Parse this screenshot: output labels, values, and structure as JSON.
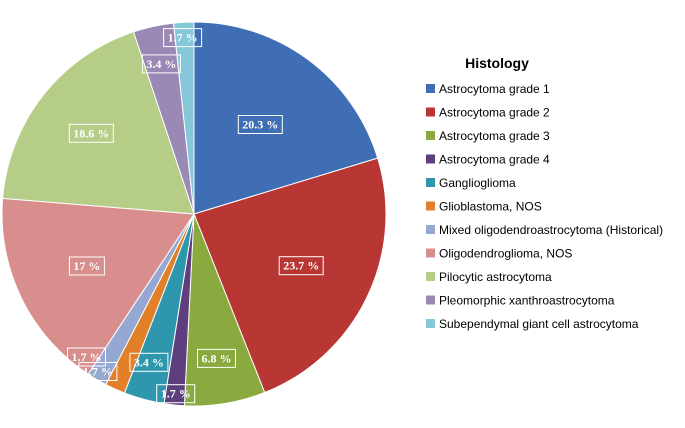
{
  "chart_data": {
    "type": "pie",
    "legend_title": "Histology",
    "legend_position": "right",
    "slices": [
      {
        "name": "Astrocytoma grade 1",
        "value": 20.3,
        "label": "20.3 %",
        "color": "#3f6eb4"
      },
      {
        "name": "Astrocytoma grade 2",
        "value": 23.7,
        "label": "23.7 %",
        "color": "#b83634"
      },
      {
        "name": "Astrocytoma grade 3",
        "value": 6.8,
        "label": "6.8 %",
        "color": "#8aaa3f"
      },
      {
        "name": "Astrocytoma grade 4",
        "value": 1.7,
        "label": "1.7 %",
        "color": "#5d3f7e"
      },
      {
        "name": "Ganglioglioma",
        "value": 3.4,
        "label": "3.4 %",
        "color": "#2e96ad"
      },
      {
        "name": "Glioblastoma, NOS",
        "value": 1.7,
        "label": "1.7 %",
        "color": "#e2802a"
      },
      {
        "name": "Mixed oligodendroastrocytoma (Historical)",
        "value": 1.7,
        "label": "1.7 %",
        "color": "#94a8d2"
      },
      {
        "name": "Oligodendroglioma, NOS",
        "value": 17,
        "label": "17 %",
        "color": "#d88e8d"
      },
      {
        "name": "Pilocytic astrocytoma",
        "value": 18.6,
        "label": "18.6 %",
        "color": "#b6cd88"
      },
      {
        "name": "Pleomorphic xanthroastrocytoma",
        "value": 3.4,
        "label": "3.4 %",
        "color": "#9b89b5"
      },
      {
        "name": "Subependymal giant cell astrocytoma",
        "value": 1.7,
        "label": "1.7 %",
        "color": "#86c7d9"
      }
    ]
  }
}
